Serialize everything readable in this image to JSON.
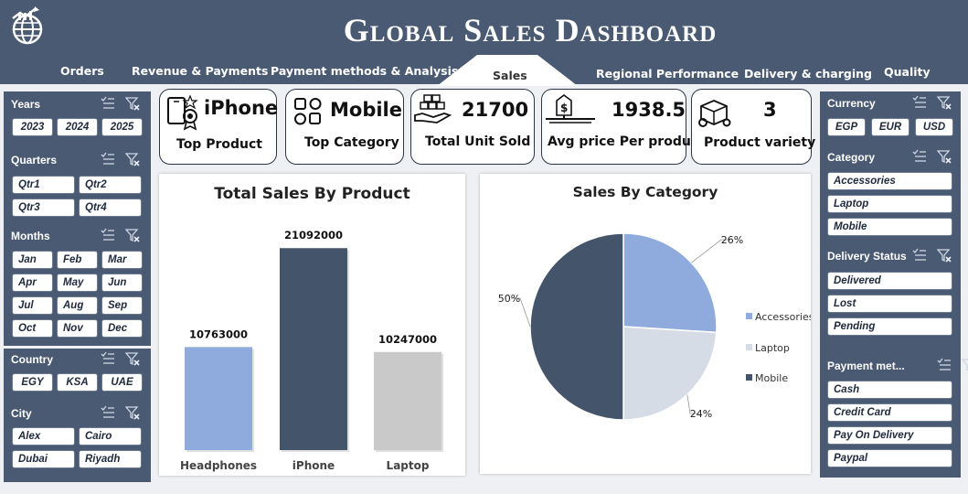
{
  "header": {
    "title": "Global Sales Dashboard",
    "logo_icon": "globe-analytics-icon",
    "tabs": [
      {
        "label": "Orders"
      },
      {
        "label": "Revenue & Payments"
      },
      {
        "label": "Payment methods & Analysis"
      },
      {
        "label": "Sales"
      },
      {
        "label": "Regional Performance"
      },
      {
        "label": "Delivery & charging"
      },
      {
        "label": "Quality"
      }
    ],
    "active_tab": "Sales"
  },
  "left_slicers": {
    "years": {
      "title": "Years",
      "items": [
        "2023",
        "2024",
        "2025"
      ]
    },
    "quarters": {
      "title": "Quarters",
      "items": [
        "Qtr1",
        "Qtr2",
        "Qtr3",
        "Qtr4"
      ]
    },
    "months": {
      "title": "Months",
      "items": [
        "Jan",
        "Feb",
        "Mar",
        "Apr",
        "May",
        "Jun",
        "Jul",
        "Aug",
        "Sep",
        "Oct",
        "Nov",
        "Dec"
      ]
    },
    "country": {
      "title": "Country",
      "items": [
        "EGY",
        "KSA",
        "UAE"
      ]
    },
    "city": {
      "title": "City",
      "items": [
        "Alex",
        "Cairo",
        "Dubai",
        "Riyadh"
      ]
    }
  },
  "right_slicers": {
    "currency": {
      "title": "Currency",
      "items": [
        "EGP",
        "EUR",
        "USD"
      ]
    },
    "category": {
      "title": "Category",
      "items": [
        "Accessories",
        "Laptop",
        "Mobile"
      ]
    },
    "delivery_status": {
      "title": "Delivery Status",
      "items": [
        "Delivered",
        "Lost",
        "Pending"
      ]
    },
    "payment_method": {
      "title": "Payment met...",
      "items": [
        "Cash",
        "Credit Card",
        "Pay On Delivery",
        "Paypal"
      ]
    }
  },
  "kpis": [
    {
      "value": "iPhone",
      "label": "Top Product",
      "icon": "award-phone-icon"
    },
    {
      "value": "Mobile",
      "label": "Top Category",
      "icon": "category-grid-icon"
    },
    {
      "value": "21700",
      "label": "Total Unit Sold",
      "icon": "boxes-hand-icon"
    },
    {
      "value": "1938.5",
      "label": "Avg price Per product",
      "icon": "price-scale-icon"
    },
    {
      "value": "3",
      "label": "Product variety",
      "icon": "product-gears-icon"
    }
  ],
  "colors": {
    "navy": "#4a5a73",
    "dark_series": "#44546a",
    "light_blue": "#8faadc",
    "light_gray": "#d6dce5",
    "bar_gray": "#c9c9c9"
  },
  "chart_data": [
    {
      "type": "bar",
      "title": "Total Sales By Product",
      "categories": [
        "Headphones",
        "iPhone",
        "Laptop"
      ],
      "values": [
        10763000,
        21092000,
        10247000
      ],
      "colors": [
        "#8faadc",
        "#44546a",
        "#c9c9c9"
      ],
      "data_labels": [
        "10763000",
        "21092000",
        "10247000"
      ],
      "grid": false
    },
    {
      "type": "pie",
      "title": "Sales By Category",
      "categories": [
        "Accessories",
        "Laptop",
        "Mobile"
      ],
      "values": [
        26,
        24,
        50
      ],
      "data_labels": [
        "26%",
        "24%",
        "50%"
      ],
      "colors": [
        "#8faadc",
        "#d6dce5",
        "#44546a"
      ],
      "legend_position": "right"
    }
  ]
}
